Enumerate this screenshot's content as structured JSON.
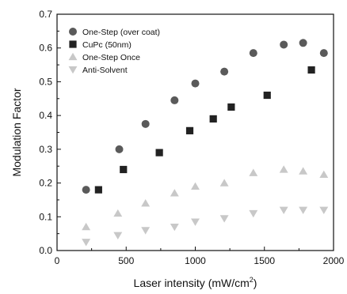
{
  "chart_data": {
    "type": "scatter",
    "xlabel": "Laser intensity (mW/cm",
    "xlabel_superscript": "2",
    "xlabel_close": ")",
    "ylabel": "Modulation Factor",
    "xlim": [
      0,
      2000
    ],
    "ylim": [
      0.0,
      0.7
    ],
    "x_ticks": [
      "0",
      "500",
      "1000",
      "1500",
      "2000"
    ],
    "y_ticks": [
      "0.0",
      "0.1",
      "0.2",
      "0.3",
      "0.4",
      "0.5",
      "0.6",
      "0.7"
    ],
    "grid": false,
    "legend_position": "top-left",
    "series": [
      {
        "name": "One-Step (over coat)",
        "marker": "circle",
        "color": "#5a5a5a",
        "x": [
          210,
          450,
          640,
          850,
          1000,
          1210,
          1420,
          1640,
          1780,
          1930
        ],
        "y": [
          0.18,
          0.3,
          0.375,
          0.445,
          0.495,
          0.53,
          0.585,
          0.61,
          0.615,
          0.585
        ]
      },
      {
        "name": "CuPc (50nm)",
        "marker": "square",
        "color": "#222222",
        "x": [
          300,
          480,
          740,
          960,
          1130,
          1260,
          1520,
          1840
        ],
        "y": [
          0.18,
          0.24,
          0.29,
          0.355,
          0.39,
          0.425,
          0.46,
          0.535
        ]
      },
      {
        "name": "One-Step Once",
        "marker": "triangle-up",
        "color": "#c8c8c8",
        "x": [
          210,
          440,
          640,
          850,
          1000,
          1210,
          1420,
          1640,
          1780,
          1930
        ],
        "y": [
          0.07,
          0.11,
          0.14,
          0.17,
          0.19,
          0.2,
          0.23,
          0.24,
          0.235,
          0.225
        ]
      },
      {
        "name": "Anti-Solvent",
        "marker": "triangle-down",
        "color": "#c8c8c8",
        "x": [
          210,
          440,
          640,
          850,
          1000,
          1210,
          1420,
          1640,
          1780,
          1930
        ],
        "y": [
          0.025,
          0.045,
          0.06,
          0.07,
          0.085,
          0.095,
          0.11,
          0.12,
          0.12,
          0.12
        ]
      }
    ]
  }
}
